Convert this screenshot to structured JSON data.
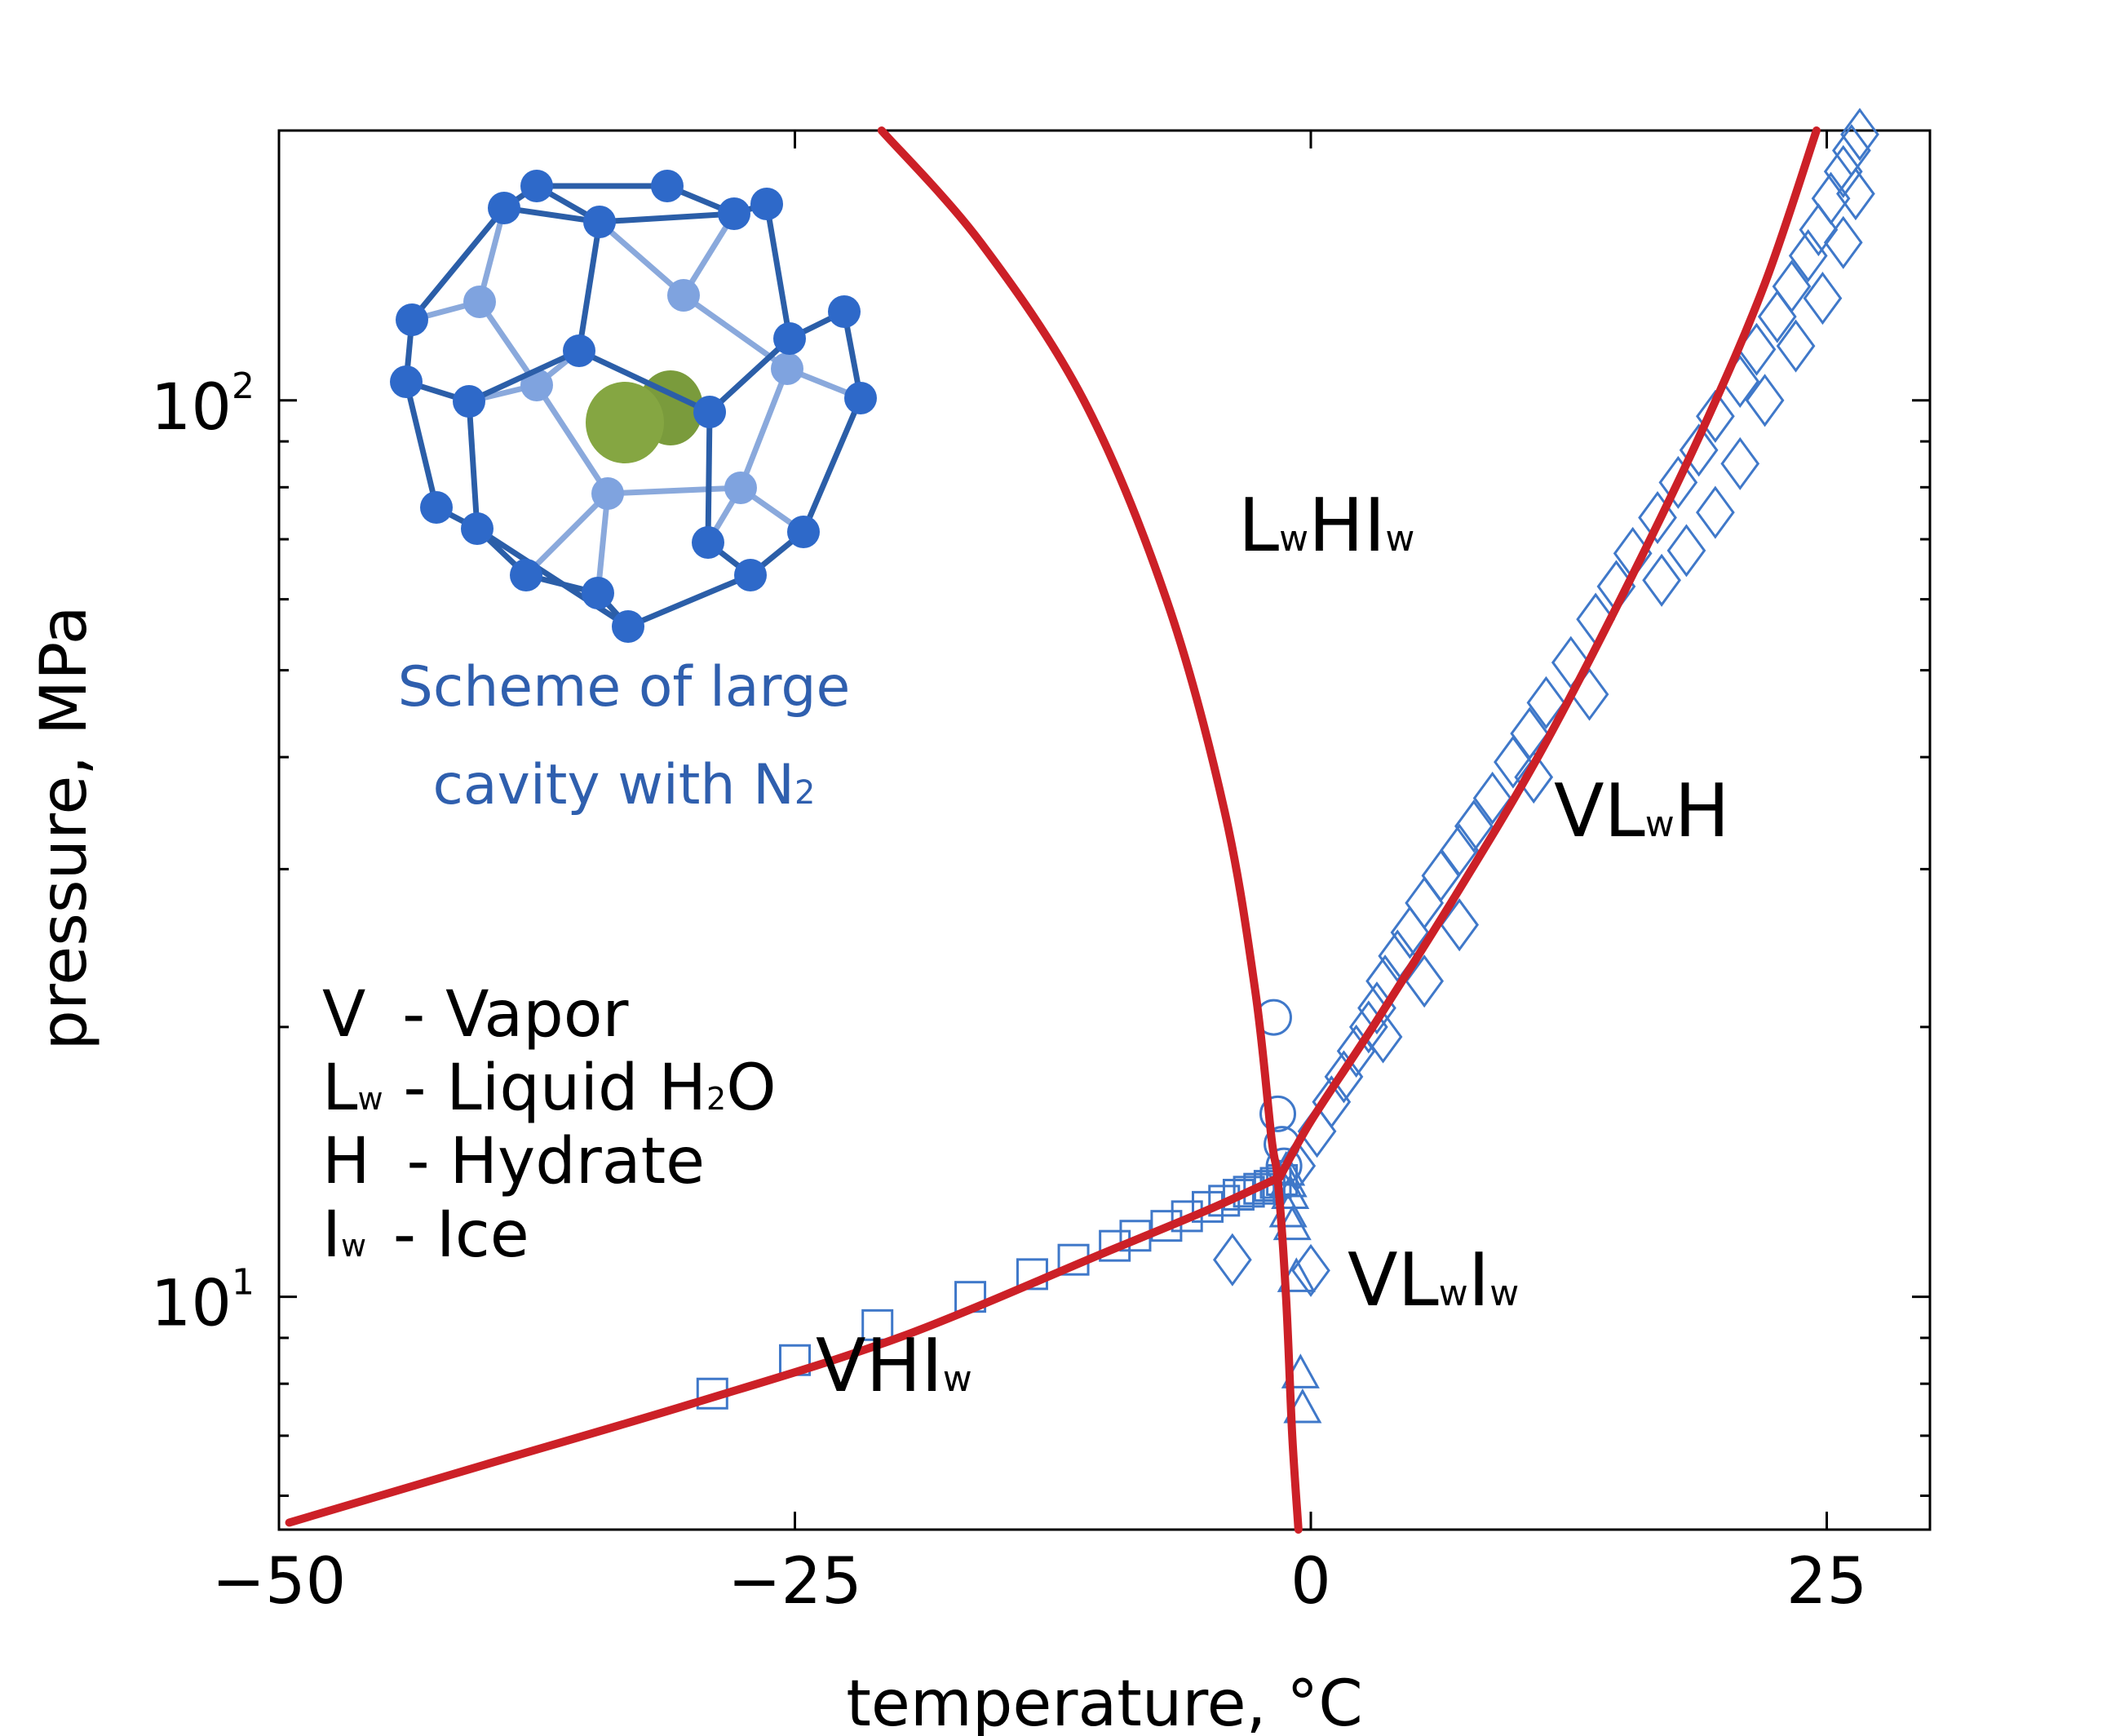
{
  "chart_data": {
    "type": "scatter",
    "title": "",
    "xlabel": "temperature, °C",
    "ylabel": "pressure, MPa",
    "xlim": [
      -50,
      30
    ],
    "ylim": [
      5.5,
      200
    ],
    "yscale": "log",
    "grid": false,
    "x_ticks": [
      -50,
      -25,
      0,
      25
    ],
    "x_tick_labels": [
      "−50",
      "−25",
      "0",
      "25"
    ],
    "y_ticks": [
      {
        "value": 10,
        "base": "10",
        "exp": "1"
      },
      {
        "value": 100,
        "base": "10",
        "exp": "2"
      }
    ],
    "colors": {
      "curve": "#cc2027",
      "markers": "#3f78c9",
      "annotation": "#2f5fae"
    },
    "curves": [
      {
        "name": "VHIw boundary",
        "x": [
          -49.5,
          -40,
          -30,
          -20,
          -10,
          -5,
          -1.5
        ],
        "y": [
          5.6,
          6.5,
          7.6,
          9.0,
          11.2,
          12.5,
          13.6
        ]
      },
      {
        "name": "LwHIw boundary",
        "x": [
          -20.8,
          -16,
          -11,
          -7,
          -4.2,
          -2.7,
          -1.9,
          -1.6,
          -1.2,
          -0.9,
          -0.6
        ],
        "y": [
          200,
          150,
          100,
          60,
          35,
          22,
          15,
          13.5,
          10,
          7,
          5.5
        ]
      },
      {
        "name": "VLwH boundary",
        "x": [
          -1.5,
          0,
          3,
          7,
          11,
          15,
          19,
          22,
          24.5
        ],
        "y": [
          13.6,
          15.7,
          20,
          28,
          40,
          60,
          93,
          135,
          200
        ]
      }
    ],
    "series": [
      {
        "marker": "square",
        "points": [
          [
            -29,
            7.8
          ],
          [
            -25,
            8.5
          ],
          [
            -21,
            9.3
          ],
          [
            -16.5,
            10.0
          ],
          [
            -13.5,
            10.6
          ],
          [
            -11.5,
            11.0
          ],
          [
            -9.5,
            11.4
          ],
          [
            -8.5,
            11.7
          ],
          [
            -7,
            12.0
          ],
          [
            -6,
            12.3
          ],
          [
            -5,
            12.6
          ],
          [
            -4.2,
            12.8
          ],
          [
            -3.5,
            13.0
          ],
          [
            -3,
            13.1
          ],
          [
            -2.5,
            13.2
          ],
          [
            -2,
            13.3
          ],
          [
            -1.7,
            13.4
          ],
          [
            -1.4,
            13.5
          ]
        ]
      },
      {
        "marker": "circle",
        "points": [
          [
            -1.8,
            20.5
          ],
          [
            -1.6,
            16.0
          ],
          [
            -1.4,
            14.8
          ],
          [
            -1.3,
            14.0
          ]
        ]
      },
      {
        "marker": "triangle",
        "points": [
          [
            -1.2,
            13.8
          ],
          [
            -1.1,
            13.4
          ],
          [
            -1,
            13.0
          ],
          [
            -1.1,
            12.4
          ],
          [
            -0.9,
            12.0
          ],
          [
            -0.7,
            10.5
          ],
          [
            -0.5,
            8.2
          ],
          [
            -0.4,
            7.5
          ]
        ]
      },
      {
        "marker": "diamond",
        "points": [
          [
            -3.8,
            11.0
          ],
          [
            0,
            10.7
          ],
          [
            -0.7,
            14.0
          ],
          [
            0.3,
            15.3
          ],
          [
            1,
            16.5
          ],
          [
            1.6,
            17.6
          ],
          [
            2.2,
            18.8
          ],
          [
            2.8,
            20.0
          ],
          [
            3.2,
            21.0
          ],
          [
            3.6,
            22.5
          ],
          [
            4.2,
            24.0
          ],
          [
            4.8,
            25.5
          ],
          [
            5.5,
            27.5
          ],
          [
            6.3,
            29.5
          ],
          [
            7.2,
            31.5
          ],
          [
            7.9,
            33.5
          ],
          [
            8.8,
            36.0
          ],
          [
            9.8,
            39.5
          ],
          [
            10.6,
            42.5
          ],
          [
            11.4,
            46.0
          ],
          [
            12.6,
            51.0
          ],
          [
            13.8,
            57.0
          ],
          [
            14.8,
            62.0
          ],
          [
            15.6,
            67.5
          ],
          [
            16.8,
            74.0
          ],
          [
            17.8,
            81.0
          ],
          [
            18.8,
            88.0
          ],
          [
            19.6,
            96.0
          ],
          [
            20.8,
            105.0
          ],
          [
            21.6,
            114.0
          ],
          [
            22.6,
            124.0
          ],
          [
            23.3,
            134.0
          ],
          [
            24.1,
            145.0
          ],
          [
            24.6,
            155.0
          ],
          [
            25.2,
            168.0
          ],
          [
            25.8,
            180.0
          ],
          [
            26.2,
            190.0
          ],
          [
            26.6,
            198.0
          ],
          [
            3.5,
            19.5
          ],
          [
            5.5,
            22.5
          ],
          [
            7.2,
            26.0
          ],
          [
            10.8,
            38.0
          ],
          [
            13.5,
            47.0
          ],
          [
            17,
            63.0
          ],
          [
            18.2,
            68.0
          ],
          [
            19.6,
            75.0
          ],
          [
            20.8,
            85.0
          ],
          [
            22,
            100.0
          ],
          [
            23.5,
            115.0
          ],
          [
            24.8,
            130.0
          ],
          [
            25.8,
            150.0
          ],
          [
            26.4,
            170.0
          ]
        ]
      }
    ]
  },
  "labels": {
    "regions": {
      "lwhiw": {
        "main1": "L",
        "sub1": "w",
        "main2": "HI",
        "sub2": "w"
      },
      "vlwh": {
        "main1": "VL",
        "sub1": "w",
        "main2": "H"
      },
      "vlwiw": {
        "main1": "VL",
        "sub1": "w",
        "main2": "I",
        "sub2": "w"
      },
      "vhiw": {
        "main1": "VHI",
        "sub1": "w"
      }
    },
    "legend": [
      {
        "main": "V",
        "sub": "",
        "desc": " - Vapor"
      },
      {
        "main": "L",
        "sub": "w",
        "desc": " - Liquid H",
        "desc_sub": "2",
        "desc_tail": "O"
      },
      {
        "main": "H",
        "sub": "",
        "desc": " - Hydrate"
      },
      {
        "main": "I",
        "sub": "w",
        "desc": " - Ice"
      }
    ],
    "inset": {
      "line1": "Scheme of large",
      "line2_main": "cavity with N",
      "line2_sub": "2"
    }
  }
}
